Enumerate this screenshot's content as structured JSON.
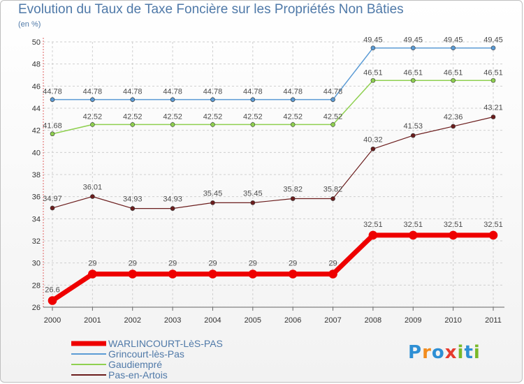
{
  "header": {
    "title": "Evolution du Taux de Taxe Foncière sur les Propriétés Non Bâties",
    "unit": "(en %)"
  },
  "logo": {
    "letters": [
      "P",
      "r",
      "o",
      "x",
      "i",
      "t",
      "i"
    ],
    "colors": [
      "#2e8fd4",
      "#f28c1e",
      "#2e8fd4",
      "#e63b2e",
      "#7ab929",
      "#2e8fd4",
      "#7ab929"
    ],
    "text": "Proxiti"
  },
  "chart_data": {
    "type": "line",
    "title": "Evolution du Taux de Taxe Foncière sur les Propriétés Non Bâties",
    "ylabel": "(en %)",
    "xlabel": "",
    "ylim": [
      26,
      50
    ],
    "yticks": [
      26,
      28,
      30,
      32,
      34,
      36,
      38,
      40,
      42,
      44,
      46,
      48,
      50
    ],
    "x": [
      "2000",
      "2001",
      "2002",
      "2003",
      "2004",
      "2005",
      "2006",
      "2007",
      "2008",
      "2009",
      "2010",
      "2011"
    ],
    "grid": true,
    "legend_position": "bottom-left",
    "series": [
      {
        "name": "Grincourt-lès-Pas",
        "color": "#5b9bd5",
        "width": 1.5,
        "marker": 3,
        "values": [
          44.78,
          44.78,
          44.78,
          44.78,
          44.78,
          44.78,
          44.78,
          44.78,
          49.45,
          49.45,
          49.45,
          49.45
        ],
        "labels": [
          "44.78",
          "44.78",
          "44.78",
          "44.78",
          "44.78",
          "44.78",
          "44.78",
          "44.78",
          "49.45",
          "49.45",
          "49.45",
          "49.45"
        ]
      },
      {
        "name": "Gaudiempré",
        "color": "#8fd050",
        "width": 1.5,
        "marker": 3,
        "values": [
          41.68,
          42.52,
          42.52,
          42.52,
          42.52,
          42.52,
          42.52,
          42.52,
          46.51,
          46.51,
          46.51,
          46.51
        ],
        "labels": [
          "41.68",
          "42.52",
          "42.52",
          "42.52",
          "42.52",
          "42.52",
          "42.52",
          "42.52",
          "46.51",
          "46.51",
          "46.51",
          "46.51"
        ]
      },
      {
        "name": "Pas-en-Artois",
        "color": "#6b1d1d",
        "width": 1.2,
        "marker": 3,
        "values": [
          34.97,
          36.01,
          34.93,
          34.93,
          35.45,
          35.45,
          35.82,
          35.82,
          40.32,
          41.53,
          42.36,
          43.21
        ],
        "labels": [
          "34.97",
          "36.01",
          "34.93",
          "34.93",
          "35.45",
          "35.45",
          "35.82",
          "35.82",
          "40.32",
          "41.53",
          "42.36",
          "43.21"
        ]
      },
      {
        "name": "WARLINCOURT-LèS-PAS",
        "color": "#ee0000",
        "width": 7,
        "marker": 6,
        "values": [
          26.6,
          29,
          29,
          29,
          29,
          29,
          29,
          29,
          32.51,
          32.51,
          32.51,
          32.51
        ],
        "labels": [
          "26.6",
          "29",
          "29",
          "29",
          "29",
          "29",
          "29",
          "29",
          "32.51",
          "32.51",
          "32.51",
          "32.51"
        ]
      }
    ],
    "legend": [
      {
        "name": "WARLINCOURT-LèS-PAS",
        "color": "#ee0000"
      },
      {
        "name": "Grincourt-lès-Pas",
        "color": "#5b9bd5"
      },
      {
        "name": "Gaudiempré",
        "color": "#8fd050"
      },
      {
        "name": "Pas-en-Artois",
        "color": "#6b1d1d"
      }
    ]
  }
}
